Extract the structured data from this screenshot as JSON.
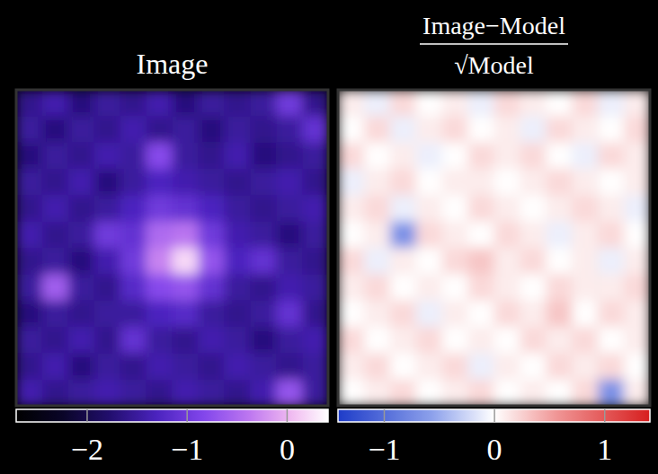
{
  "chart_data": [
    {
      "type": "heatmap",
      "title": "Image",
      "tick_labels": false,
      "cells": [
        [
          -1.6,
          -1.4,
          -1.7,
          -1.5,
          -1.6,
          -1.4,
          -1.7,
          -1.5,
          -1.6,
          -1.5,
          -1.0,
          -1.6
        ],
        [
          -1.5,
          -1.7,
          -1.5,
          -1.6,
          -1.4,
          -1.6,
          -1.5,
          -1.7,
          -1.5,
          -1.6,
          -1.5,
          -1.1
        ],
        [
          -1.7,
          -1.5,
          -1.6,
          -1.4,
          -1.5,
          -0.8,
          -1.5,
          -1.6,
          -1.4,
          -1.7,
          -1.6,
          -1.5
        ],
        [
          -1.5,
          -1.6,
          -1.4,
          -1.7,
          -1.5,
          -1.3,
          -1.4,
          -1.5,
          -1.6,
          -1.5,
          -1.4,
          -1.6
        ],
        [
          -1.6,
          -1.4,
          -1.6,
          -1.5,
          -1.3,
          -1.0,
          -1.1,
          -1.3,
          -1.5,
          -1.6,
          -1.5,
          -1.4
        ],
        [
          -1.4,
          -1.6,
          -1.5,
          -1.0,
          -1.1,
          -0.5,
          -0.4,
          -1.0,
          -1.4,
          -1.5,
          -1.7,
          -1.5
        ],
        [
          -1.6,
          -1.5,
          -1.7,
          -1.4,
          -1.0,
          -0.3,
          0.2,
          -0.7,
          -1.3,
          -1.1,
          -1.5,
          -1.6
        ],
        [
          -1.5,
          -0.6,
          -1.5,
          -1.6,
          -1.2,
          -0.8,
          -0.7,
          -1.1,
          -1.5,
          -1.6,
          -1.4,
          -1.5
        ],
        [
          -1.7,
          -1.5,
          -1.6,
          -1.5,
          -1.5,
          -1.3,
          -1.2,
          -1.5,
          -1.6,
          -1.5,
          -1.1,
          -1.6
        ],
        [
          -1.5,
          -1.6,
          -1.4,
          -1.6,
          -1.1,
          -1.5,
          -1.6,
          -1.4,
          -1.5,
          -1.7,
          -1.5,
          -1.4
        ],
        [
          -1.6,
          -1.4,
          -1.7,
          -1.5,
          -1.6,
          -1.4,
          -1.5,
          -1.6,
          -1.4,
          -1.5,
          -1.6,
          -1.5
        ],
        [
          -1.4,
          -1.6,
          -1.5,
          -1.4,
          -1.5,
          -1.6,
          -1.4,
          -1.5,
          -1.6,
          -1.4,
          -0.7,
          -1.5
        ]
      ],
      "colorbar_range": [
        -2.71,
        0.41
      ],
      "colorbar_ticks": [
        {
          "value": -2,
          "label": "−2"
        },
        {
          "value": -1,
          "label": "−1"
        },
        0
      ]
    },
    {
      "type": "heatmap",
      "title": {
        "numerator": "Image−Model",
        "denominator": "√Model"
      },
      "tick_labels": false,
      "cells": [
        [
          0.1,
          -0.1,
          0.2,
          0.0,
          0.1,
          -0.1,
          0.2,
          0.1,
          0.0,
          0.2,
          -0.1,
          0.1
        ],
        [
          0.0,
          0.2,
          -0.1,
          0.1,
          0.2,
          0.0,
          0.1,
          -0.1,
          0.2,
          0.1,
          0.0,
          0.2
        ],
        [
          0.2,
          0.0,
          0.1,
          -0.1,
          0.0,
          0.2,
          0.1,
          0.2,
          0.0,
          -0.1,
          0.2,
          0.1
        ],
        [
          -0.1,
          0.1,
          0.2,
          0.0,
          0.1,
          0.1,
          0.0,
          0.1,
          0.2,
          0.1,
          0.0,
          0.1
        ],
        [
          0.1,
          0.2,
          -0.1,
          0.1,
          0.0,
          0.2,
          0.1,
          0.0,
          0.1,
          0.2,
          0.1,
          -0.1
        ],
        [
          0.0,
          0.1,
          -0.7,
          0.2,
          0.1,
          0.0,
          0.2,
          0.1,
          -0.1,
          0.1,
          0.2,
          0.0
        ],
        [
          0.2,
          -0.1,
          0.1,
          0.0,
          0.2,
          0.3,
          0.1,
          0.2,
          0.0,
          0.1,
          -0.1,
          0.1
        ],
        [
          0.1,
          0.2,
          0.0,
          0.1,
          0.0,
          0.2,
          0.1,
          0.0,
          0.2,
          0.1,
          0.1,
          0.2
        ],
        [
          0.0,
          0.1,
          0.2,
          -0.1,
          0.1,
          0.0,
          0.2,
          0.1,
          0.3,
          0.0,
          0.2,
          0.1
        ],
        [
          0.2,
          0.0,
          0.1,
          0.2,
          0.0,
          0.1,
          0.0,
          0.2,
          0.1,
          0.2,
          0.0,
          0.1
        ],
        [
          0.1,
          0.2,
          0.0,
          0.1,
          0.2,
          -0.1,
          0.1,
          0.0,
          0.2,
          0.1,
          0.2,
          0.0
        ],
        [
          0.0,
          0.1,
          0.2,
          0.0,
          0.1,
          0.2,
          0.0,
          0.1,
          0.0,
          0.2,
          -0.7,
          0.1
        ]
      ],
      "colorbar_range": [
        -1.42,
        1.41
      ],
      "colorbar_ticks": [
        {
          "value": -1,
          "label": "−1"
        },
        0,
        1
      ]
    }
  ]
}
